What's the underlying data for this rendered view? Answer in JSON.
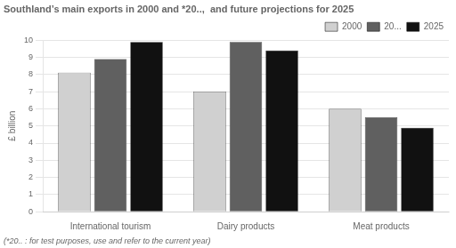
{
  "chart_data": {
    "type": "bar",
    "title": "Southland’s main exports in 2000 and *20..,  and future projections for 2025",
    "annotations": [
      "(*20.. : for test purposes, use and refer to the current year)"
    ],
    "categories": [
      "International tourism",
      "Dairy products",
      "Meat products"
    ],
    "series": [
      {
        "name": "2000",
        "color": "#d0d0d0",
        "values": [
          8.1,
          7.0,
          6.0
        ]
      },
      {
        "name": "20...",
        "color": "#606060",
        "values": [
          8.9,
          9.9,
          5.5
        ]
      },
      {
        "name": "2025",
        "color": "#111111",
        "values": [
          9.9,
          9.4,
          4.9
        ]
      }
    ],
    "ylabel": "£ billion",
    "ylim": [
      0,
      10
    ],
    "yticks": [
      0,
      1,
      2,
      3,
      4,
      5,
      6,
      7,
      8,
      9,
      10
    ],
    "grid": true,
    "legend": "upper right"
  }
}
